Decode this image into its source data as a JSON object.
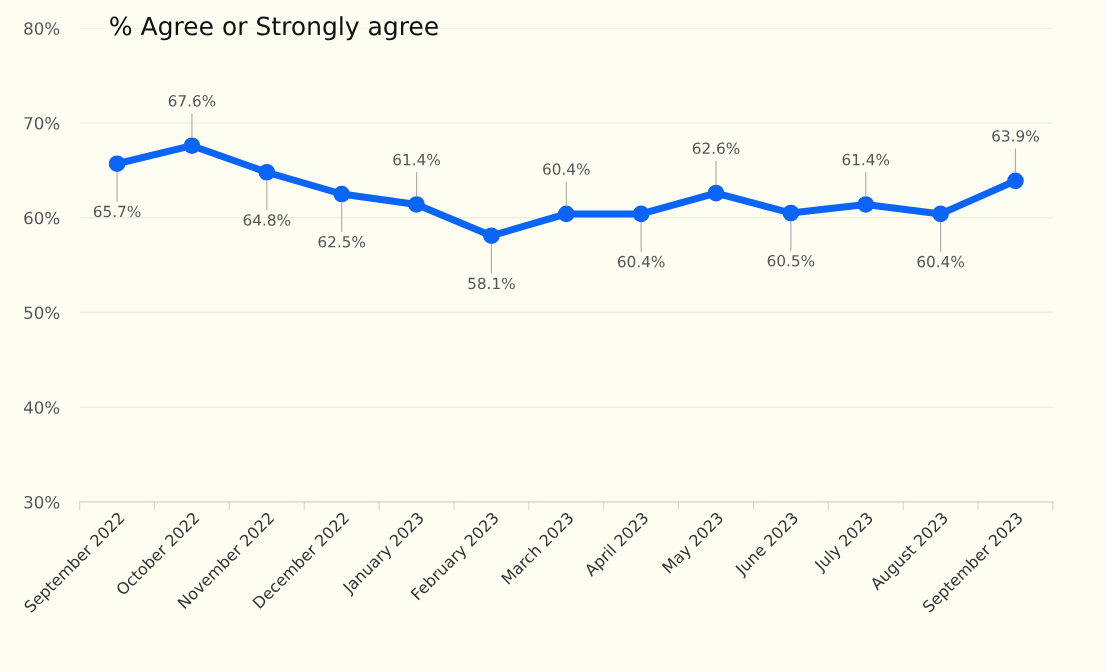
{
  "chart_data": {
    "type": "line",
    "title": "% Agree or Strongly agree",
    "categories": [
      "September 2022",
      "October 2022",
      "November 2022",
      "December 2022",
      "January 2023",
      "February 2023",
      "March 2023",
      "April 2023",
      "May 2023",
      "June 2023",
      "July 2023",
      "August 2023",
      "September 2023"
    ],
    "series": [
      {
        "color": "#0a64f5",
        "values": [
          65.7,
          67.6,
          64.8,
          62.5,
          61.4,
          58.1,
          60.4,
          60.4,
          62.6,
          60.5,
          61.4,
          60.4,
          63.9
        ],
        "value_labels": [
          "65.7%",
          "67.6%",
          "64.8%",
          "62.5%",
          "61.4%",
          "58.1%",
          "60.4%",
          "60.4%",
          "62.6%",
          "60.5%",
          "61.4%",
          "60.4%",
          "63.9%"
        ]
      }
    ],
    "ylim": [
      30,
      80
    ],
    "yticks": [
      {
        "value": 30,
        "label": "30%"
      },
      {
        "value": 40,
        "label": "40%"
      },
      {
        "value": 50,
        "label": "50%"
      },
      {
        "value": 60,
        "label": "60%"
      },
      {
        "value": 70,
        "label": "70%"
      },
      {
        "value": 80,
        "label": "80%"
      }
    ],
    "grid": "y",
    "marker": "circle",
    "line_style": "solid",
    "legend": false
  }
}
